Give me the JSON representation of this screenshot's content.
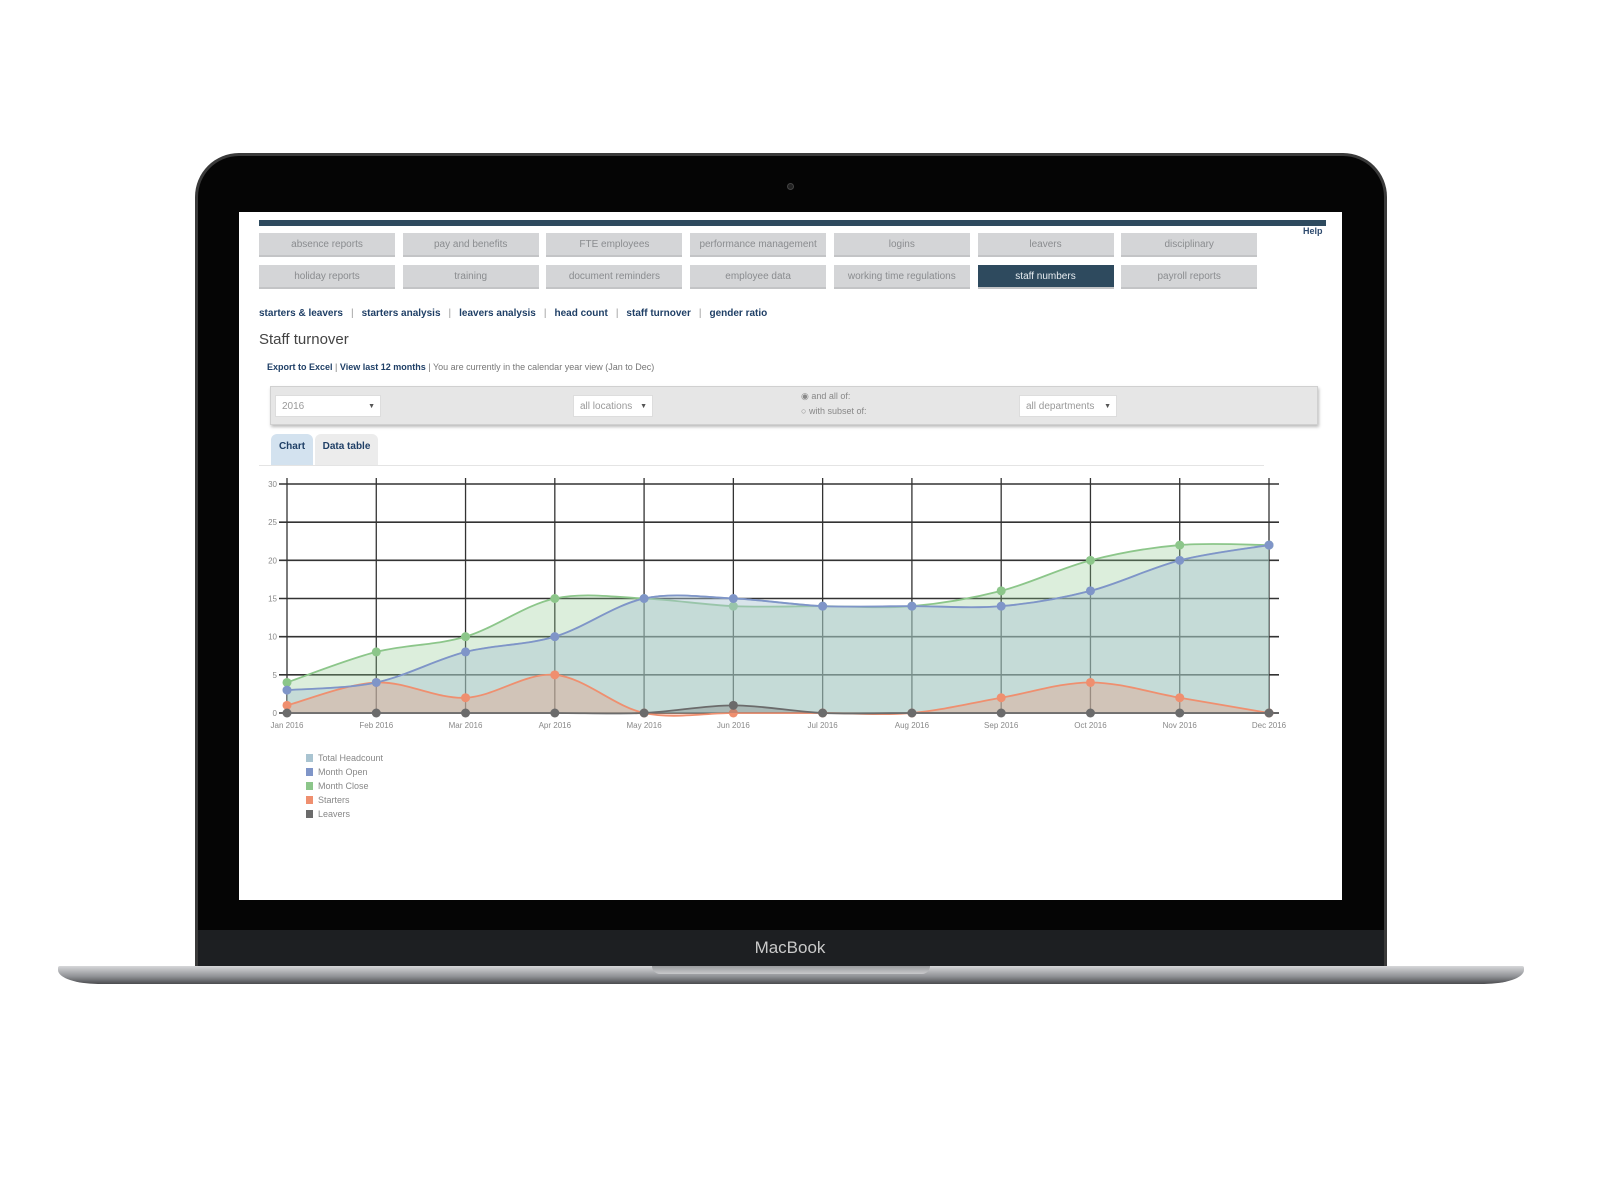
{
  "device": {
    "brand": "MacBook"
  },
  "nav": {
    "row1": [
      "absence reports",
      "pay and benefits",
      "FTE employees",
      "performance management",
      "logins",
      "leavers",
      "disciplinary"
    ],
    "row2": [
      "holiday reports",
      "training",
      "document reminders",
      "employee data",
      "working time regulations",
      "staff numbers",
      "payroll reports"
    ],
    "active": "staff numbers",
    "help": "Help"
  },
  "subnav": [
    "starters & leavers",
    "starters analysis",
    "leavers analysis",
    "head count",
    "staff turnover",
    "gender ratio"
  ],
  "page_title": "Staff turnover",
  "actions": {
    "export": "Export to Excel",
    "last12": "View last 12 months",
    "note": "| You are currently in the calendar year view (Jan to Dec)"
  },
  "filters": {
    "year": "2016",
    "location": "all locations",
    "radio_all": "and all of:",
    "radio_subset": "with subset of:",
    "department": "all departments"
  },
  "tabs": {
    "chart": "Chart",
    "table": "Data table",
    "active": "Chart"
  },
  "colors": {
    "nav_dark": "#2e4a5e",
    "link": "#1f3f66"
  },
  "chart_data": {
    "type": "area",
    "categories": [
      "Jan 2016",
      "Feb 2016",
      "Mar 2016",
      "Apr 2016",
      "May 2016",
      "Jun 2016",
      "Jul 2016",
      "Aug 2016",
      "Sep 2016",
      "Oct 2016",
      "Nov 2016",
      "Dec 2016"
    ],
    "ylim": [
      0,
      30
    ],
    "yticks": [
      0,
      5,
      10,
      15,
      20,
      25,
      30
    ],
    "grid": true,
    "legend": "bottom-left",
    "series": [
      {
        "name": "Total Headcount",
        "color": "#a9c4d1",
        "values": [
          3,
          4,
          8,
          10,
          15,
          15,
          14,
          14,
          14,
          16,
          20,
          22
        ]
      },
      {
        "name": "Month Open",
        "color": "#7f95c8",
        "values": [
          3,
          4,
          8,
          10,
          15,
          15,
          14,
          14,
          14,
          16,
          20,
          22
        ]
      },
      {
        "name": "Month Close",
        "color": "#8cc68a",
        "values": [
          4,
          8,
          10,
          15,
          15,
          14,
          14,
          14,
          16,
          20,
          22,
          22
        ]
      },
      {
        "name": "Starters",
        "color": "#ef8f6f",
        "values": [
          1,
          4,
          2,
          5,
          0,
          0,
          0,
          0,
          2,
          4,
          2,
          0
        ]
      },
      {
        "name": "Leavers",
        "color": "#6b6b6b",
        "values": [
          0,
          0,
          0,
          0,
          0,
          1,
          0,
          0,
          0,
          0,
          0,
          0
        ]
      }
    ]
  }
}
